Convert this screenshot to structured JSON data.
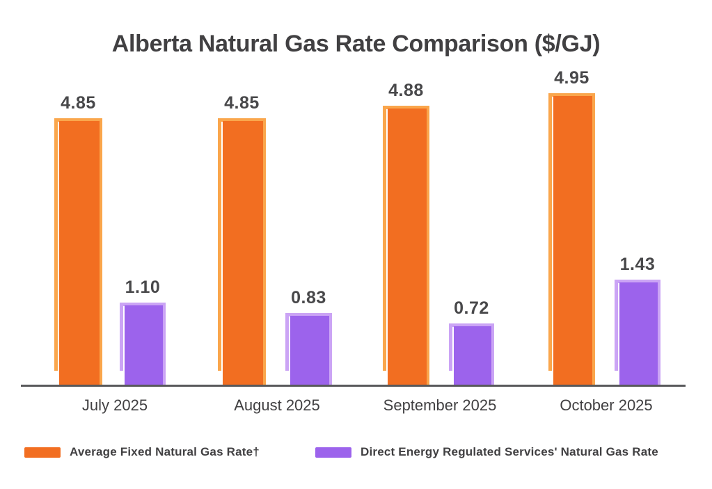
{
  "title": "Alberta Natural Gas Rate Comparison ($/GJ)",
  "chart_data": {
    "type": "bar",
    "title": "Alberta Natural Gas Rate Comparison ($/GJ)",
    "xlabel": "",
    "ylabel": "$/GJ",
    "categories": [
      "July 2025",
      "August 2025",
      "September 2025",
      "October 2025"
    ],
    "series": [
      {
        "name": "Average Fixed Natural Gas Rate†",
        "values": [
          4.85,
          4.85,
          4.88,
          4.95
        ],
        "value_labels": [
          "4.85",
          "4.85",
          "4.88",
          "4.95"
        ],
        "color": "#F26E21",
        "outline_color": "#FAA64C"
      },
      {
        "name": "Direct Energy Regulated Services' Natural Gas Rate",
        "values": [
          1.1,
          0.83,
          0.72,
          1.43
        ],
        "value_labels": [
          "1.10",
          "0.83",
          "0.72",
          "1.43"
        ],
        "color": "#9C63EC",
        "outline_color": "#CBA4F5"
      }
    ],
    "grid": false,
    "y_axis_visible": false,
    "bars_not_to_scale": true,
    "legend_position": "bottom"
  },
  "legend": {
    "items": [
      {
        "label": "Average Fixed Natural Gas Rate†",
        "color": "#F26E21"
      },
      {
        "label": "Direct Energy Regulated Services' Natural Gas Rate",
        "color": "#9C63EC"
      }
    ]
  },
  "colors": {
    "orange_fill": "#F26E21",
    "orange_outline": "#FAA64C",
    "purple_fill": "#9C63EC",
    "purple_outline": "#CBA4F5",
    "text": "#414042",
    "axis_line": "#58595B",
    "background": "#FFFFFF"
  }
}
